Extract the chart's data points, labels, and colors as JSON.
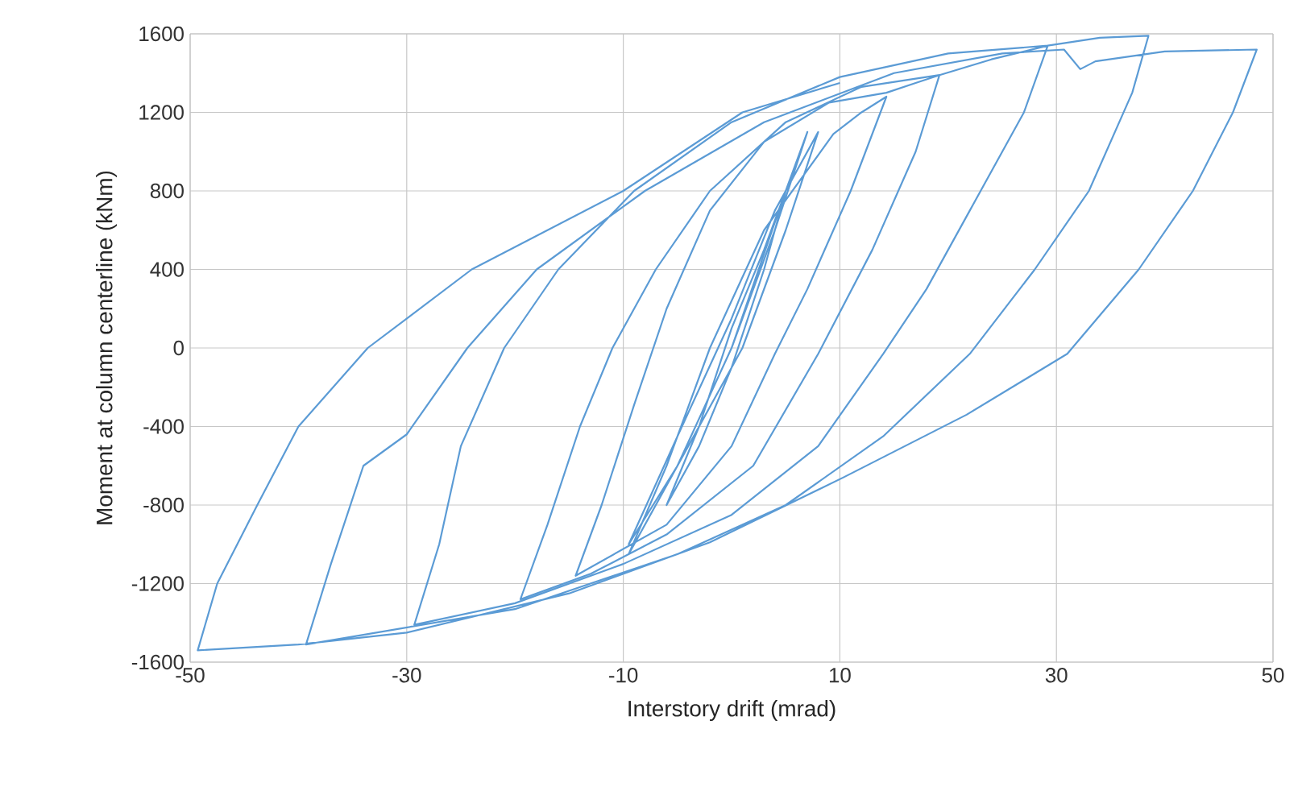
{
  "chart_data": {
    "type": "line",
    "xlabel": "Interstory drift (mrad)",
    "ylabel": "Moment at column centerline (kNm)",
    "xlim": [
      -50,
      50
    ],
    "ylim": [
      -1600,
      1600
    ],
    "xticks": [
      -50,
      -30,
      -10,
      10,
      30,
      50
    ],
    "yticks": [
      -1600,
      -1200,
      -800,
      -400,
      0,
      400,
      800,
      1200,
      1600
    ],
    "grid": true,
    "series": [
      {
        "color": "#5b9bd5",
        "x": [
          0,
          2.5,
          5,
          3,
          0,
          -3,
          -6,
          -3,
          0,
          3,
          7,
          4,
          0,
          -5,
          -9.5,
          -5,
          0,
          4,
          8,
          5,
          1,
          -4,
          -9.5,
          -6,
          -2,
          3,
          9.4,
          12,
          14.3,
          11,
          7,
          4,
          0,
          -6,
          -14.4,
          -12,
          -9,
          -6,
          -2,
          3,
          9,
          14.3,
          17,
          19.2,
          17,
          13,
          8,
          2,
          -6,
          -13,
          -19.5,
          -17,
          -14,
          -11,
          -7,
          -2,
          5,
          12,
          19.2,
          24,
          29.2,
          27,
          22,
          18,
          14,
          8,
          0,
          -10,
          -20,
          -29.3,
          -27,
          -25,
          -21,
          -16,
          -9,
          0,
          10,
          20,
          29.2,
          34,
          38.5,
          37,
          33,
          28,
          22,
          14,
          5,
          -5,
          -20,
          -39.3,
          -37,
          -34,
          -30,
          -24.4,
          -18,
          -8,
          3,
          15,
          25,
          30.7,
          32.2,
          33.6,
          40,
          48.5,
          46.3,
          42.6,
          37.6,
          31,
          21.7,
          10.3,
          -2,
          -15,
          -30,
          -40,
          -49.3,
          -47.5,
          -43.8,
          -40,
          -33.6,
          -24,
          -10,
          1,
          10
        ],
        "values": [
          0,
          400,
          800,
          400,
          -100,
          -500,
          -800,
          -400,
          100,
          500,
          1100,
          600,
          0,
          -600,
          -1000,
          -450,
          150,
          700,
          1100,
          600,
          0,
          -500,
          -1050,
          -600,
          0,
          600,
          1090,
          1200,
          1280,
          800,
          300,
          -30,
          -500,
          -900,
          -1160,
          -800,
          -290,
          200,
          700,
          1050,
          1250,
          1300,
          1350,
          1390,
          1000,
          500,
          -30,
          -600,
          -950,
          -1150,
          -1280,
          -900,
          -400,
          0,
          400,
          800,
          1150,
          1330,
          1390,
          1470,
          1540,
          1200,
          700,
          300,
          -30,
          -500,
          -850,
          -1100,
          -1300,
          -1410,
          -1000,
          -500,
          0,
          400,
          800,
          1150,
          1380,
          1500,
          1540,
          1580,
          1590,
          1300,
          800,
          400,
          -30,
          -450,
          -800,
          -1050,
          -1330,
          -1510,
          -1100,
          -600,
          -440,
          0,
          400,
          800,
          1150,
          1400,
          1500,
          1520,
          1420,
          1460,
          1510,
          1520,
          1200,
          800,
          400,
          -30,
          -340,
          -660,
          -990,
          -1250,
          -1450,
          -1510,
          -1540,
          -1200,
          -800,
          -400,
          0,
          400,
          800,
          1200,
          1350
        ]
      }
    ]
  }
}
